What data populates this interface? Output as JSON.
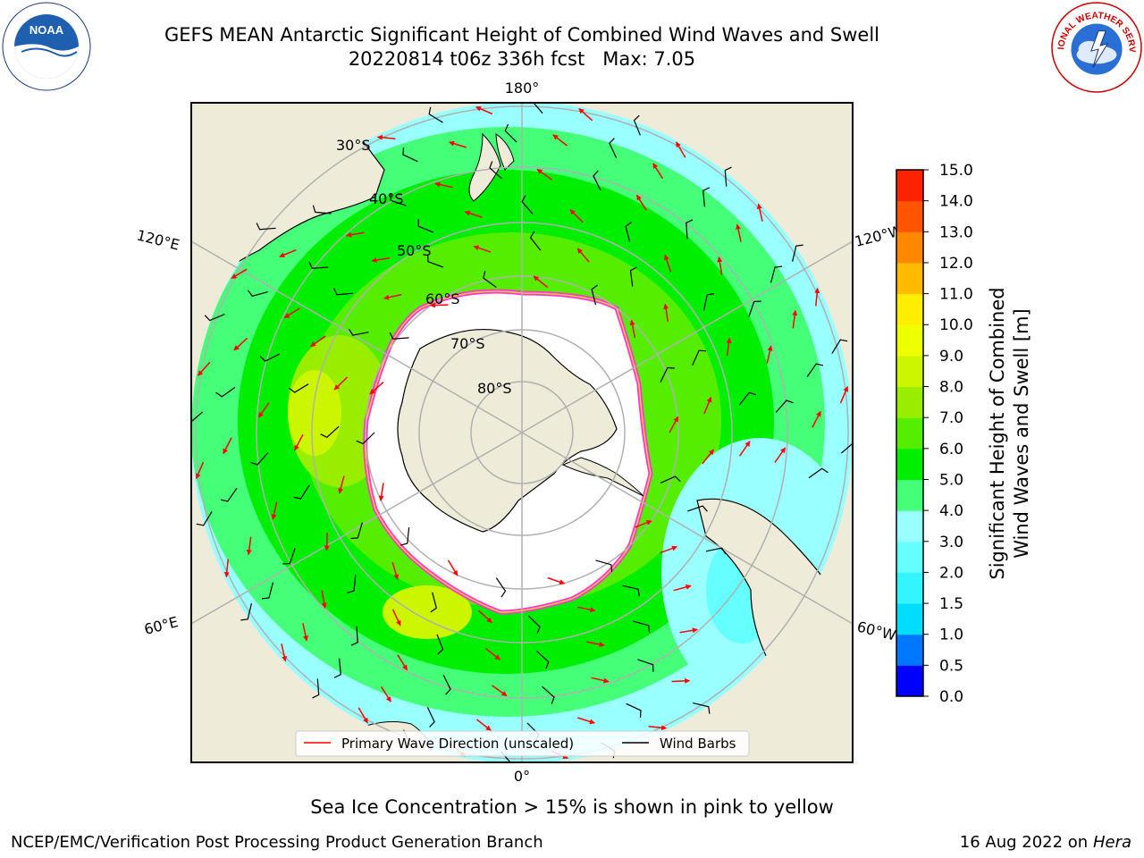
{
  "title": {
    "line1": "GEFS MEAN Antarctic Significant Height of Combined Wind Waves and Swell",
    "line2": "20220814 t06z 336h fcst   Max: 7.05"
  },
  "map": {
    "projection": "south-polar-stereographic",
    "longitude_labels": {
      "top": "180°",
      "bottom": "0°",
      "upper_left": "120°E",
      "lower_left": "60°E",
      "upper_right": "120°W",
      "lower_right": "60°W"
    },
    "latitude_labels": [
      "30°S",
      "40°S",
      "50°S",
      "60°S",
      "70°S",
      "80°S"
    ],
    "colors": {
      "land": "#efebd9",
      "ice_shelf": "#ffffff",
      "ice_edge": "#ff33dd",
      "ice_edge_inner": "#ffcc33",
      "grid": "#b0b0b0",
      "wave_arrow": "#ff0000",
      "wind_barb": "#000000"
    },
    "legend": {
      "position": "bottom-center",
      "items": [
        {
          "label": "Primary Wave Direction (unscaled)",
          "color": "#ff0000"
        },
        {
          "label": "Wind Barbs",
          "color": "#000000"
        }
      ]
    }
  },
  "colorbar": {
    "label_line1": "Significant Height of Combined",
    "label_line2": "Wind Waves and Swell [m]",
    "ticks": [
      "0.0",
      "0.5",
      "1.0",
      "1.5",
      "2.0",
      "3.0",
      "4.0",
      "5.0",
      "6.0",
      "7.0",
      "8.0",
      "9.0",
      "10.0",
      "11.0",
      "12.0",
      "13.0",
      "14.0",
      "15.0"
    ],
    "colors": [
      "#0000ff",
      "#0077ff",
      "#00ddff",
      "#33f5ff",
      "#66ffff",
      "#99ffff",
      "#44ff77",
      "#00ee00",
      "#55ee00",
      "#99ee00",
      "#ccf500",
      "#eeff00",
      "#ffee00",
      "#ffbb00",
      "#ff8800",
      "#ff5500",
      "#ff2200"
    ]
  },
  "footer": {
    "sea_ice_note": "Sea Ice Concentration > 15% is shown in pink to yellow",
    "credit": "NCEP/EMC/Verification Post Processing Product Generation Branch",
    "date": "16 Aug 2022 on",
    "host": "Hera"
  },
  "logos": {
    "noaa": "NOAA",
    "nws": "NATIONAL WEATHER SERVICE"
  }
}
